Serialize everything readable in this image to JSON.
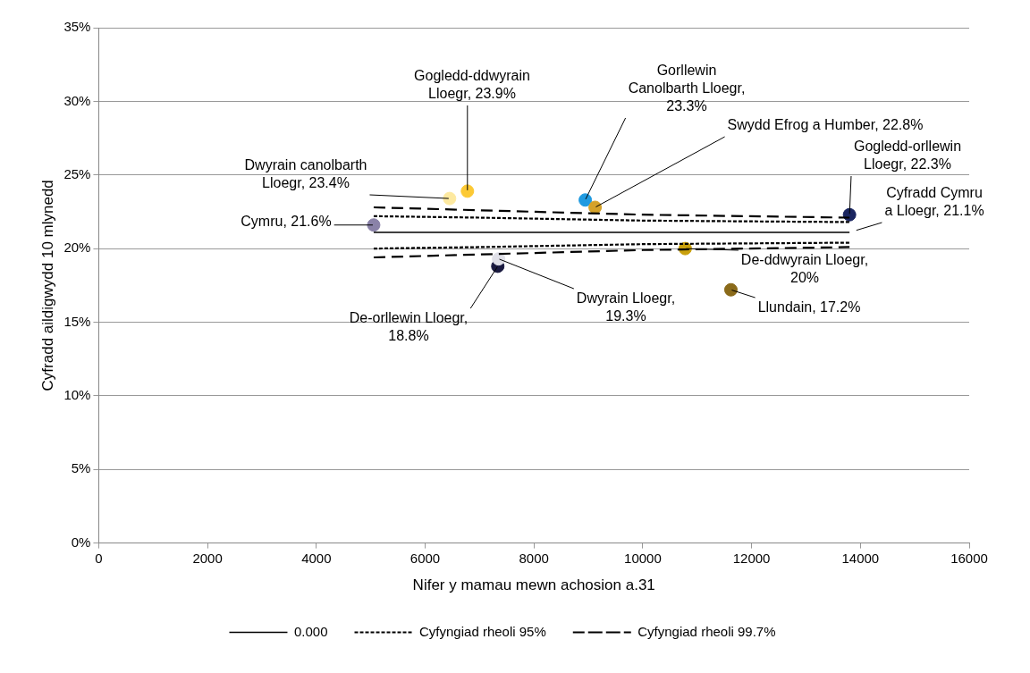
{
  "chart_data": {
    "type": "scatter",
    "xlabel": "Nifer y mamau mewn achosion a.31",
    "ylabel": "Cyfradd aildigwydd 10 mlynedd",
    "xlim": [
      0,
      16000
    ],
    "xticks": [
      0,
      2000,
      4000,
      6000,
      8000,
      10000,
      12000,
      14000,
      16000
    ],
    "ylim": [
      0,
      35
    ],
    "yticks": [
      {
        "value": 0,
        "label": "0%"
      },
      {
        "value": 5,
        "label": "5%"
      },
      {
        "value": 10,
        "label": "10%"
      },
      {
        "value": 15,
        "label": "15%"
      },
      {
        "value": 20,
        "label": "20%"
      },
      {
        "value": 25,
        "label": "25%"
      },
      {
        "value": 30,
        "label": "30%"
      },
      {
        "value": 35,
        "label": "35%"
      }
    ],
    "grid": "y",
    "legend": "bottom",
    "marker": "circle",
    "series": [
      {
        "type": "line",
        "name": "0.000",
        "color": "#000000",
        "line_style": "solid",
        "marker": "none",
        "x": [
          5054,
          13800
        ],
        "values": [
          21.1,
          21.1
        ]
      },
      {
        "type": "line",
        "name": "Cyfyngiad rheoli 95%",
        "color": "#000000",
        "line_style": "dotted",
        "marker": "none",
        "x": [
          5054,
          7000,
          10000,
          13800
        ],
        "values": [
          22.2,
          22.1,
          21.9,
          21.8
        ]
      },
      {
        "type": "line",
        "color": "#000000",
        "line_style": "dotted",
        "marker": "none",
        "x": [
          5054,
          7000,
          10000,
          13800
        ],
        "values": [
          20.0,
          20.1,
          20.3,
          20.4
        ]
      },
      {
        "type": "line",
        "name": "Cyfyngiad rheoli 99.7%",
        "color": "#000000",
        "line_style": "dashed",
        "marker": "none",
        "x": [
          5054,
          7000,
          10000,
          13800
        ],
        "values": [
          22.8,
          22.6,
          22.3,
          22.1
        ]
      },
      {
        "type": "line",
        "color": "#000000",
        "line_style": "dashed",
        "marker": "none",
        "x": [
          5054,
          7000,
          10000,
          13800
        ],
        "values": [
          19.4,
          19.6,
          19.9,
          20.1
        ]
      },
      {
        "type": "scatter",
        "x": [
          5054,
          6449,
          6777,
          8943,
          9124,
          13800,
          7335,
          7350,
          10780,
          11620
        ],
        "values": [
          21.6,
          23.4,
          23.9,
          23.3,
          22.8,
          22.3,
          18.8,
          19.3,
          20,
          17.2
        ],
        "colors": [
          "#8a82a8",
          "#fde9a0",
          "#fcc934",
          "#1f9ae0",
          "#d4a22a",
          "#1a2560",
          "#1a1a40",
          "#e0e0e8",
          "#c9a00c",
          "#8a6a1a"
        ]
      }
    ],
    "annotations": [
      {
        "text": "Cymru, 21.6%",
        "x": 5054,
        "y": 21.6
      },
      {
        "text": "Dwyrain canolbarth Lloegr, 23.4%",
        "x": 6449,
        "y": 23.4
      },
      {
        "text": "Gogledd-ddwyrain Lloegr, 23.9%",
        "x": 6777,
        "y": 23.9
      },
      {
        "text": "Gorllewin Canolbarth Lloegr, 23.3%",
        "x": 8943,
        "y": 23.3
      },
      {
        "text": "Swydd Efrog a Humber, 22.8%",
        "x": 9124,
        "y": 22.8
      },
      {
        "text": "Gogledd-orllewin Lloegr, 22.3%",
        "x": 13800,
        "y": 22.3
      },
      {
        "text": "Cyfradd Cymru a Lloegr, 21.1%",
        "x": 13800,
        "y": 21.1
      },
      {
        "text": "De-orllewin Lloegr, 18.8%",
        "x": 7335,
        "y": 18.8
      },
      {
        "text": "Dwyrain Lloegr, 19.3%",
        "x": 7350,
        "y": 19.3
      },
      {
        "text": "De-ddwyrain Lloegr, 20%",
        "x": 10780,
        "y": 20
      },
      {
        "text": "Llundain, 17.2%",
        "x": 11620,
        "y": 17.2
      }
    ]
  }
}
